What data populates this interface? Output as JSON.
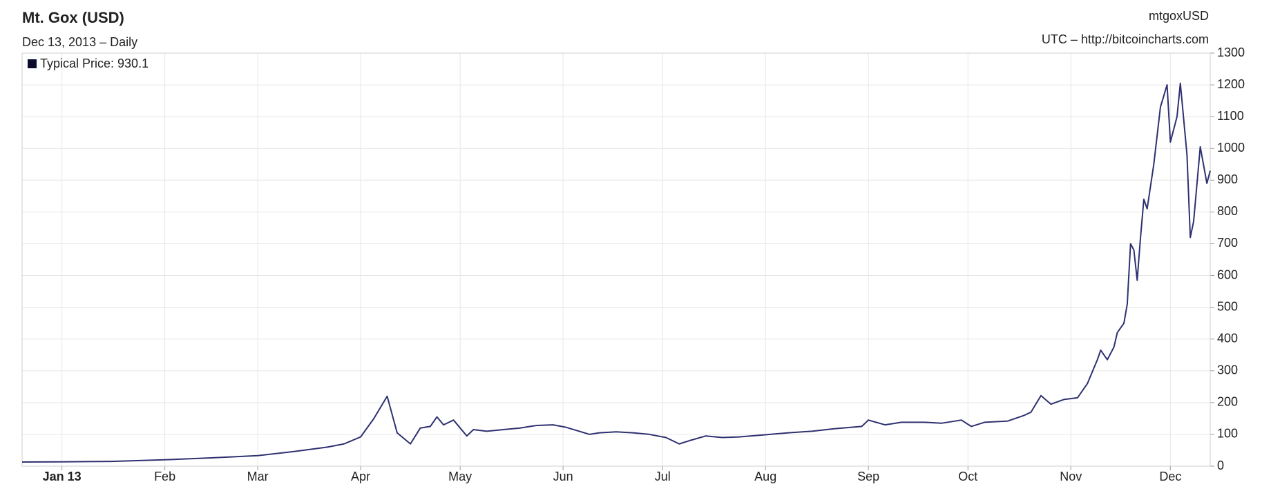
{
  "chart_data": {
    "type": "line",
    "title": "Mt. Gox (USD)",
    "subtitle": "Dec 13, 2013 – Daily",
    "symbol": "mtgoxUSD",
    "source": "UTC – http://bitcoincharts.com",
    "legend": "top-left",
    "grid": true,
    "xlim": [
      -12,
      346
    ],
    "xticks": [
      {
        "value": 0,
        "label": "Jan 13"
      },
      {
        "value": 31,
        "label": "Feb"
      },
      {
        "value": 59,
        "label": "Mar"
      },
      {
        "value": 90,
        "label": "Apr"
      },
      {
        "value": 120,
        "label": "May"
      },
      {
        "value": 151,
        "label": "Jun"
      },
      {
        "value": 181,
        "label": "Jul"
      },
      {
        "value": 212,
        "label": "Aug"
      },
      {
        "value": 243,
        "label": "Sep"
      },
      {
        "value": 273,
        "label": "Oct"
      },
      {
        "value": 304,
        "label": "Nov"
      },
      {
        "value": 334,
        "label": "Dec"
      }
    ],
    "ylim": [
      0,
      1300
    ],
    "yticks": [
      0,
      100,
      200,
      300,
      400,
      500,
      600,
      700,
      800,
      900,
      1000,
      1100,
      1200,
      1300
    ],
    "x": [
      -12,
      0,
      15,
      31,
      45,
      59,
      70,
      80,
      85,
      90,
      94,
      98,
      101,
      105,
      108,
      111,
      113,
      115,
      118,
      122,
      124,
      128,
      133,
      138,
      143,
      148,
      152,
      159,
      162,
      167,
      172,
      177,
      182,
      186,
      189,
      194,
      199,
      204,
      211,
      219,
      226,
      233,
      241,
      243,
      248,
      253,
      260,
      265,
      271,
      274,
      278,
      285,
      290,
      292,
      295,
      298,
      302,
      306,
      309,
      312,
      313,
      315,
      317,
      318,
      320,
      321,
      322,
      323,
      324,
      325,
      326,
      327,
      329,
      331,
      333,
      334,
      336,
      337,
      339,
      340,
      341,
      343,
      345,
      346
    ],
    "series": [
      {
        "name": "Typical Price: 930.1",
        "color": "#2e3070",
        "legend_color": "#0b0b2e",
        "values": [
          13,
          13.5,
          15,
          20,
          26,
          33,
          46,
          60,
          70,
          92,
          150,
          220,
          105,
          70,
          120,
          125,
          155,
          130,
          145,
          95,
          115,
          110,
          115,
          120,
          128,
          130,
          122,
          100,
          105,
          108,
          105,
          100,
          90,
          70,
          80,
          95,
          90,
          92,
          98,
          105,
          110,
          118,
          125,
          145,
          130,
          138,
          138,
          135,
          145,
          125,
          138,
          142,
          160,
          170,
          222,
          195,
          210,
          215,
          260,
          335,
          365,
          335,
          375,
          420,
          450,
          510,
          700,
          680,
          585,
          720,
          840,
          810,
          950,
          1130,
          1200,
          1020,
          1100,
          1205,
          980,
          720,
          770,
          1005,
          890,
          930
        ]
      }
    ]
  }
}
